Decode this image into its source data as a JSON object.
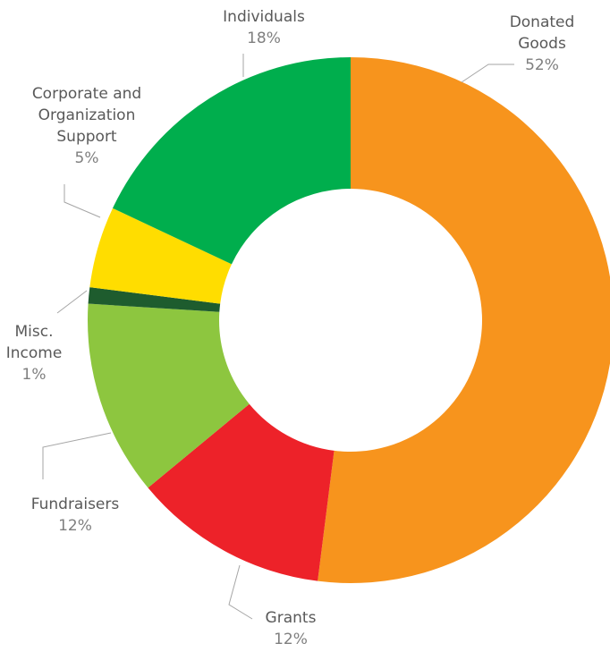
{
  "chart_data": {
    "type": "pie",
    "variant": "donut",
    "title": "",
    "legend": "none",
    "slices": [
      {
        "label": "Donated Goods",
        "label_lines": [
          "Donated",
          "Goods"
        ],
        "value": 52,
        "value_label": "52%",
        "color": "#F7941D"
      },
      {
        "label": "Grants",
        "label_lines": [
          "Grants"
        ],
        "value": 12,
        "value_label": "12%",
        "color": "#ED2229"
      },
      {
        "label": "Fundraisers",
        "label_lines": [
          "Fundraisers"
        ],
        "value": 12,
        "value_label": "12%",
        "color": "#8DC63F"
      },
      {
        "label": "Misc. Income",
        "label_lines": [
          "Misc.",
          "Income"
        ],
        "value": 1,
        "value_label": "1%",
        "color": "#1E5C2E"
      },
      {
        "label": "Corporate and Organization Support",
        "label_lines": [
          "Corporate and",
          "Organization",
          "Support"
        ],
        "value": 5,
        "value_label": "5%",
        "color": "#FFDD00"
      },
      {
        "label": "Individuals",
        "label_lines": [
          "Individuals"
        ],
        "value": 18,
        "value_label": "18%",
        "color": "#00AE4D"
      }
    ]
  }
}
